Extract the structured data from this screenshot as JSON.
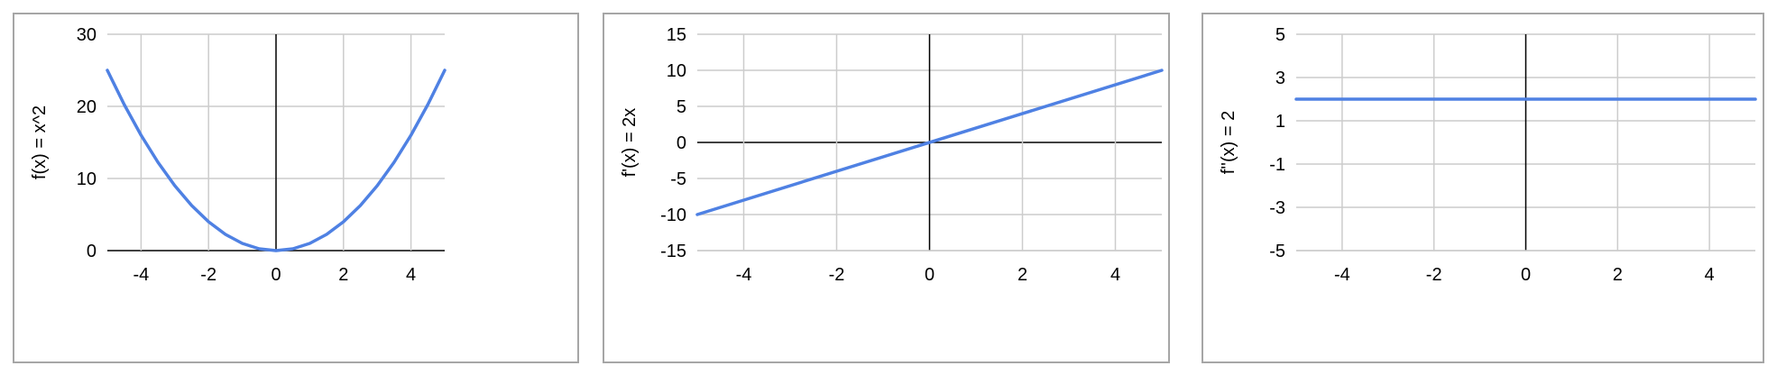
{
  "colors": {
    "series": "#4f81e3",
    "grid": "#cccccc",
    "axis": "#000000",
    "border": "#a6a6a6"
  },
  "chart_data": [
    {
      "type": "line",
      "ylabel": "f(x) = x^2",
      "xlabel": "",
      "xlim": [
        -5,
        5
      ],
      "ylim": [
        0,
        30
      ],
      "xticks": [
        -4,
        -2,
        0,
        2,
        4
      ],
      "yticks": [
        0,
        10,
        20,
        30
      ],
      "xgrid": [
        -4,
        -2,
        0,
        2,
        4
      ],
      "ygrid": [
        0,
        10,
        20,
        30
      ],
      "grid": true,
      "series": [
        {
          "x": [
            -5,
            -4.5,
            -4,
            -3.5,
            -3,
            -2.5,
            -2,
            -1.5,
            -1,
            -0.5,
            0,
            0.5,
            1,
            1.5,
            2,
            2.5,
            3,
            3.5,
            4,
            4.5,
            5
          ],
          "values": [
            25,
            20.25,
            16,
            12.25,
            9,
            6.25,
            4,
            2.25,
            1,
            0.25,
            0,
            0.25,
            1,
            2.25,
            4,
            6.25,
            9,
            12.25,
            16,
            20.25,
            25
          ]
        }
      ]
    },
    {
      "type": "line",
      "ylabel": "f'(x) = 2x",
      "xlabel": "",
      "xlim": [
        -5,
        5
      ],
      "ylim": [
        -15,
        15
      ],
      "xticks": [
        -4,
        -2,
        0,
        2,
        4
      ],
      "yticks": [
        -15,
        -10,
        -5,
        0,
        5,
        10,
        15
      ],
      "xgrid": [
        -4,
        -2,
        0,
        2,
        4
      ],
      "ygrid": [
        -15,
        -10,
        -5,
        0,
        5,
        10,
        15
      ],
      "grid": true,
      "series": [
        {
          "x": [
            -5,
            5
          ],
          "values": [
            -10,
            10
          ]
        }
      ]
    },
    {
      "type": "line",
      "ylabel": "f''(x) = 2",
      "xlabel": "",
      "xlim": [
        -5,
        5
      ],
      "ylim": [
        -5,
        5
      ],
      "xticks": [
        -4,
        -2,
        0,
        2,
        4
      ],
      "yticks": [
        -5,
        -3,
        -1,
        1,
        3,
        5
      ],
      "xgrid": [
        -4,
        -2,
        0,
        2,
        4
      ],
      "ygrid": [
        -5,
        -3,
        -1,
        1,
        3,
        5
      ],
      "grid": true,
      "series": [
        {
          "x": [
            -5,
            5
          ],
          "values": [
            2,
            2
          ]
        }
      ]
    }
  ]
}
